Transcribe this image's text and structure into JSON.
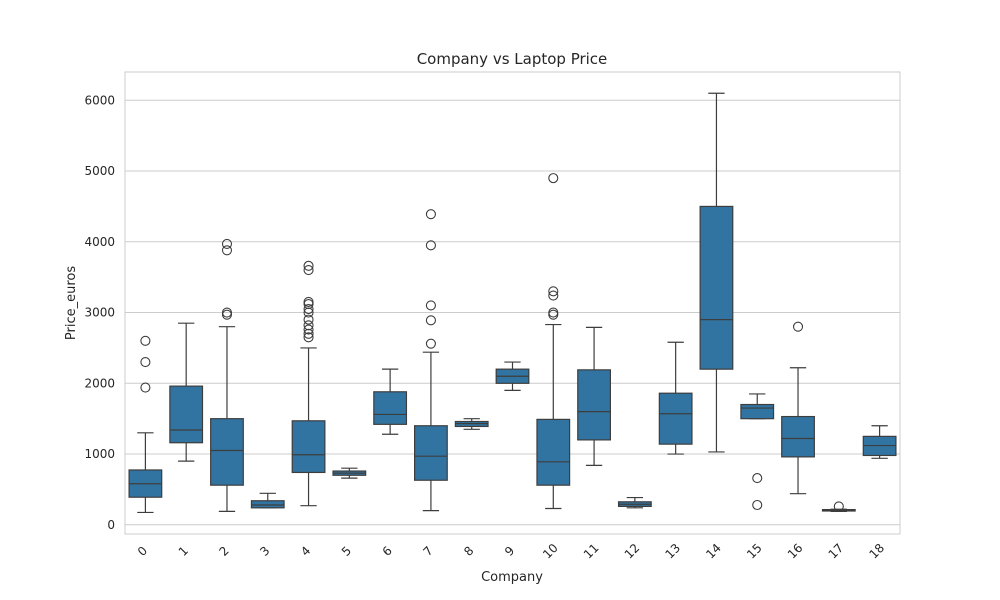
{
  "chart_data": {
    "type": "boxplot",
    "title": "Company vs Laptop Price",
    "xlabel": "Company",
    "ylabel": "Price_euros",
    "ylim": [
      -130,
      6400
    ],
    "yticks": [
      0,
      1000,
      2000,
      3000,
      4000,
      5000,
      6000
    ],
    "grid": "horizontal",
    "box_color": "#3274a1",
    "line_color": "#3d3d3d",
    "grid_color": "#cccccc",
    "categories": [
      "0",
      "1",
      "2",
      "3",
      "4",
      "5",
      "6",
      "7",
      "8",
      "9",
      "10",
      "11",
      "12",
      "13",
      "14",
      "15",
      "16",
      "17",
      "18"
    ],
    "boxes": [
      {
        "q1": 390,
        "median": 580,
        "q3": 775,
        "whisker_low": 175,
        "whisker_high": 1300,
        "outliers": [
          1940,
          2300,
          2600
        ]
      },
      {
        "q1": 1160,
        "median": 1340,
        "q3": 1960,
        "whisker_low": 900,
        "whisker_high": 2850,
        "outliers": []
      },
      {
        "q1": 560,
        "median": 1050,
        "q3": 1500,
        "whisker_low": 190,
        "whisker_high": 2800,
        "outliers": [
          2970,
          3000,
          3880,
          3970
        ]
      },
      {
        "q1": 240,
        "median": 280,
        "q3": 340,
        "whisker_low": 240,
        "whisker_high": 445,
        "outliers": []
      },
      {
        "q1": 740,
        "median": 990,
        "q3": 1470,
        "whisker_low": 270,
        "whisker_high": 2500,
        "outliers": [
          2650,
          2700,
          2760,
          2820,
          2900,
          3000,
          3050,
          3120,
          3150,
          3600,
          3660
        ]
      },
      {
        "q1": 700,
        "median": 730,
        "q3": 760,
        "whisker_low": 660,
        "whisker_high": 800,
        "outliers": []
      },
      {
        "q1": 1420,
        "median": 1560,
        "q3": 1880,
        "whisker_low": 1280,
        "whisker_high": 2200,
        "outliers": []
      },
      {
        "q1": 630,
        "median": 970,
        "q3": 1400,
        "whisker_low": 200,
        "whisker_high": 2440,
        "outliers": [
          2560,
          2890,
          3100,
          3950,
          4390
        ]
      },
      {
        "q1": 1390,
        "median": 1430,
        "q3": 1460,
        "whisker_low": 1350,
        "whisker_high": 1500,
        "outliers": []
      },
      {
        "q1": 2000,
        "median": 2100,
        "q3": 2200,
        "whisker_low": 1900,
        "whisker_high": 2300,
        "outliers": []
      },
      {
        "q1": 560,
        "median": 890,
        "q3": 1490,
        "whisker_low": 230,
        "whisker_high": 2830,
        "outliers": [
          2970,
          3000,
          3240,
          3300,
          4900
        ]
      },
      {
        "q1": 1200,
        "median": 1600,
        "q3": 2190,
        "whisker_low": 840,
        "whisker_high": 2790,
        "outliers": []
      },
      {
        "q1": 260,
        "median": 290,
        "q3": 325,
        "whisker_low": 240,
        "whisker_high": 385,
        "outliers": []
      },
      {
        "q1": 1140,
        "median": 1570,
        "q3": 1860,
        "whisker_low": 1000,
        "whisker_high": 2580,
        "outliers": []
      },
      {
        "q1": 2200,
        "median": 2900,
        "q3": 4500,
        "whisker_low": 1030,
        "whisker_high": 6100,
        "outliers": []
      },
      {
        "q1": 1500,
        "median": 1650,
        "q3": 1700,
        "whisker_low": 1500,
        "whisker_high": 1850,
        "outliers": [
          280,
          660
        ]
      },
      {
        "q1": 960,
        "median": 1220,
        "q3": 1530,
        "whisker_low": 440,
        "whisker_high": 2220,
        "outliers": [
          2800
        ]
      },
      {
        "q1": 195,
        "median": 205,
        "q3": 215,
        "whisker_low": 190,
        "whisker_high": 220,
        "outliers": [
          260
        ]
      },
      {
        "q1": 980,
        "median": 1120,
        "q3": 1250,
        "whisker_low": 940,
        "whisker_high": 1400,
        "outliers": []
      }
    ]
  }
}
